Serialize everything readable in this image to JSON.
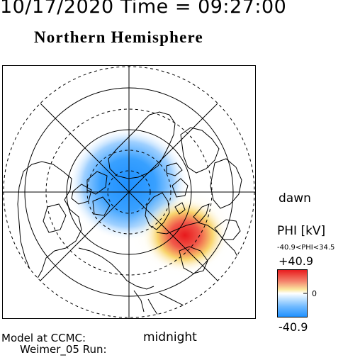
{
  "header": {
    "datetime": "10/17/2020 Time = 09:27:00"
  },
  "title": "Northern Hemisphere",
  "map": {
    "orientation_labels": {
      "dawn": "dawn",
      "midnight": "midnight"
    },
    "projection": "polar-stereographic",
    "potential_pattern": {
      "negative_cell": "dusk/pre-midnight sector, blue",
      "positive_cell": "dawn/post-midnight sector, red"
    }
  },
  "model": {
    "line1": "Model at CCMC:",
    "line2": "Weimer_05 Run:"
  },
  "legend": {
    "title": "PHI [kV]",
    "range_text": "-40.9<PHI<34.5",
    "max_label": "+40.9",
    "zero_label": "0",
    "min_label": "-40.9",
    "colors": {
      "high": "#e8191c",
      "mid": "#ffffff",
      "low": "#1e90ff"
    }
  }
}
